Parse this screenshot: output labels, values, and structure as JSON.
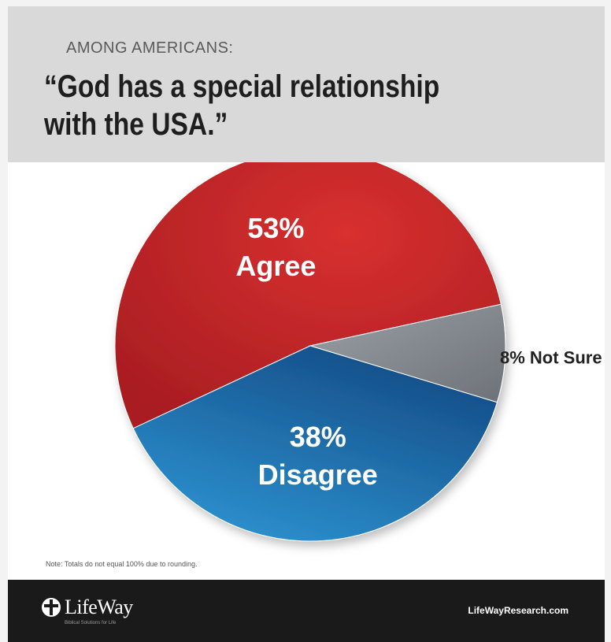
{
  "header": {
    "kicker": "AMONG AMERICANS:",
    "headline": "“God has a special relationship\nwith the USA.”"
  },
  "chart_data": {
    "type": "pie",
    "slices": [
      {
        "label": "Agree",
        "value": 53,
        "display_value": "53%",
        "color": "#c8252b"
      },
      {
        "label": "Not Sure",
        "value": 8,
        "display_value": "8% Not Sure",
        "color": "#8c8f94"
      },
      {
        "label": "Disagree",
        "value": 38,
        "display_value": "38%",
        "color": "#1f6fb0"
      }
    ]
  },
  "note": "Note: Totals do not equal 100% due to rounding.",
  "footer": {
    "logo_text": "LifeWay",
    "logo_tagline": "Biblical Solutions for Life",
    "site": "LifeWayResearch.com"
  }
}
